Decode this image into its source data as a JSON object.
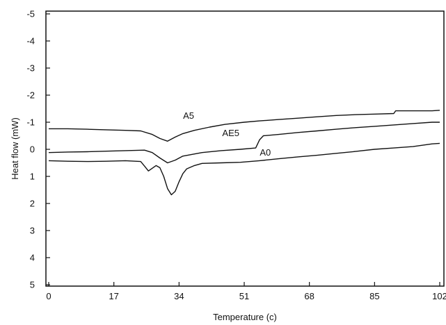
{
  "chart_data": {
    "type": "line",
    "xlabel": "Temperature (c)",
    "ylabel": "Heat flow (mW)",
    "xlim": [
      0,
      102
    ],
    "ylim": [
      5,
      -5
    ],
    "y_inverted": true,
    "xticks": [
      0,
      17,
      34,
      51,
      68,
      85,
      102
    ],
    "xtick_labels": [
      "0",
      "17",
      "34",
      "51",
      "68",
      "85",
      "102"
    ],
    "yticks": [
      -5,
      -4,
      -3,
      -2,
      -1,
      0,
      1,
      2,
      3,
      4,
      5
    ],
    "ytick_labels": [
      "-5",
      "-4",
      "-3",
      "-2",
      "-1",
      "0",
      "1",
      "2",
      "3",
      "4",
      "5"
    ],
    "grid": false,
    "line_color": "#111111",
    "series": [
      {
        "name": "A5",
        "label_at": [
          36.5,
          -1.25
        ],
        "x": [
          0,
          5,
          10,
          15,
          20,
          24,
          27,
          29,
          31,
          33,
          35,
          38,
          42,
          46,
          51,
          55,
          60,
          65,
          70,
          75,
          80,
          85,
          90,
          90.5,
          95,
          100,
          102
        ],
        "y": [
          -0.76,
          -0.76,
          -0.74,
          -0.72,
          -0.7,
          -0.68,
          -0.55,
          -0.4,
          -0.3,
          -0.45,
          -0.58,
          -0.7,
          -0.82,
          -0.92,
          -1.0,
          -1.05,
          -1.1,
          -1.15,
          -1.2,
          -1.25,
          -1.28,
          -1.3,
          -1.32,
          -1.42,
          -1.42,
          -1.42,
          -1.44
        ]
      },
      {
        "name": "AE5",
        "label_at": [
          47.5,
          -0.6
        ],
        "x": [
          0,
          5,
          10,
          15,
          20,
          25,
          27,
          29,
          31,
          33,
          35,
          40,
          45,
          50,
          54,
          55,
          56,
          60,
          65,
          70,
          75,
          80,
          85,
          90,
          95,
          100,
          102
        ],
        "y": [
          0.12,
          0.1,
          0.09,
          0.07,
          0.05,
          0.03,
          0.12,
          0.32,
          0.5,
          0.4,
          0.25,
          0.12,
          0.05,
          0.0,
          -0.05,
          -0.35,
          -0.5,
          -0.55,
          -0.62,
          -0.68,
          -0.74,
          -0.8,
          -0.85,
          -0.9,
          -0.95,
          -1.0,
          -1.0
        ]
      },
      {
        "name": "A0",
        "label_at": [
          56.5,
          0.12
        ],
        "x": [
          0,
          5,
          10,
          15,
          20,
          24,
          25,
          26,
          27,
          28,
          29,
          30,
          31,
          32,
          33,
          34,
          35,
          36,
          38,
          40,
          45,
          50,
          55,
          60,
          65,
          70,
          75,
          80,
          85,
          90,
          95,
          100,
          102
        ],
        "y": [
          0.42,
          0.44,
          0.45,
          0.44,
          0.42,
          0.45,
          0.62,
          0.8,
          0.7,
          0.6,
          0.68,
          1.0,
          1.45,
          1.68,
          1.55,
          1.2,
          0.9,
          0.72,
          0.6,
          0.52,
          0.5,
          0.48,
          0.42,
          0.35,
          0.28,
          0.22,
          0.15,
          0.08,
          0.0,
          -0.05,
          -0.1,
          -0.2,
          -0.22
        ]
      }
    ]
  }
}
